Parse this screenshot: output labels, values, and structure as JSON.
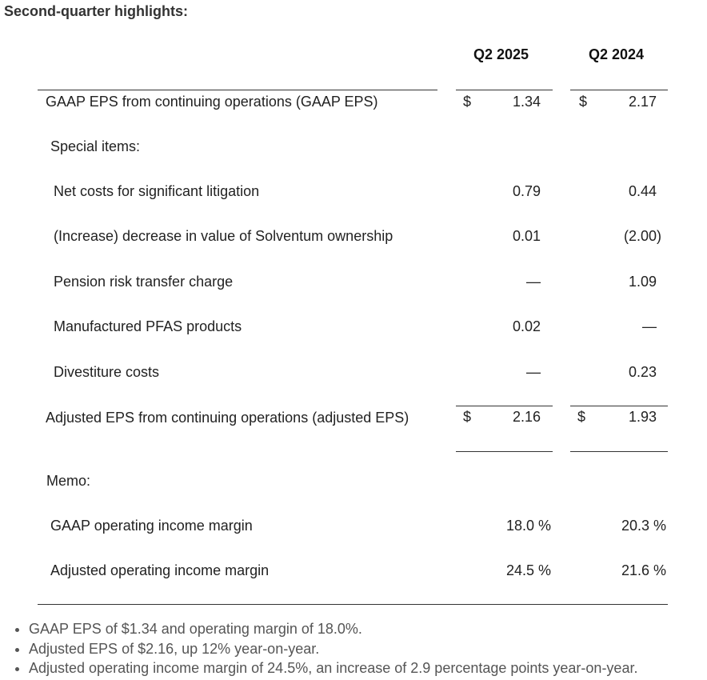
{
  "heading": "Second-quarter highlights:",
  "columns": [
    "Q2 2025",
    "Q2 2024"
  ],
  "currency_symbol": "$",
  "gaap_eps": {
    "label": "GAAP EPS from continuing operations (GAAP EPS)",
    "q2_2025": "1.34",
    "q2_2024": "2.17"
  },
  "special_items_label": "Special items:",
  "special_items": [
    {
      "label": "Net costs for significant litigation",
      "q2_2025": "0.79",
      "q2_2024": "0.44"
    },
    {
      "label": "(Increase) decrease in value of Solventum ownership",
      "q2_2025": "0.01",
      "q2_2024": "(2.00)"
    },
    {
      "label": "Pension risk transfer charge",
      "q2_2025": "—",
      "q2_2024": "1.09"
    },
    {
      "label": "Manufactured PFAS products",
      "q2_2025": "0.02",
      "q2_2024": "—"
    },
    {
      "label": "Divestiture costs",
      "q2_2025": "—",
      "q2_2024": "0.23"
    }
  ],
  "adjusted_eps": {
    "label": "Adjusted EPS from continuing operations (adjusted EPS)",
    "q2_2025": "2.16",
    "q2_2024": "1.93"
  },
  "memo_label": "Memo:",
  "memo_items": [
    {
      "label": "GAAP operating income margin",
      "q2_2025": "18.0 %",
      "q2_2024": "20.3 %"
    },
    {
      "label": "Adjusted operating income margin",
      "q2_2025": "24.5 %",
      "q2_2024": "21.6 %"
    }
  ],
  "bullets": [
    "GAAP EPS of $1.34 and operating margin of 18.0%.",
    "Adjusted EPS of $2.16, up 12% year-on-year.",
    "Adjusted operating income margin of 24.5%, an increase of 2.9 percentage points year-on-year."
  ]
}
